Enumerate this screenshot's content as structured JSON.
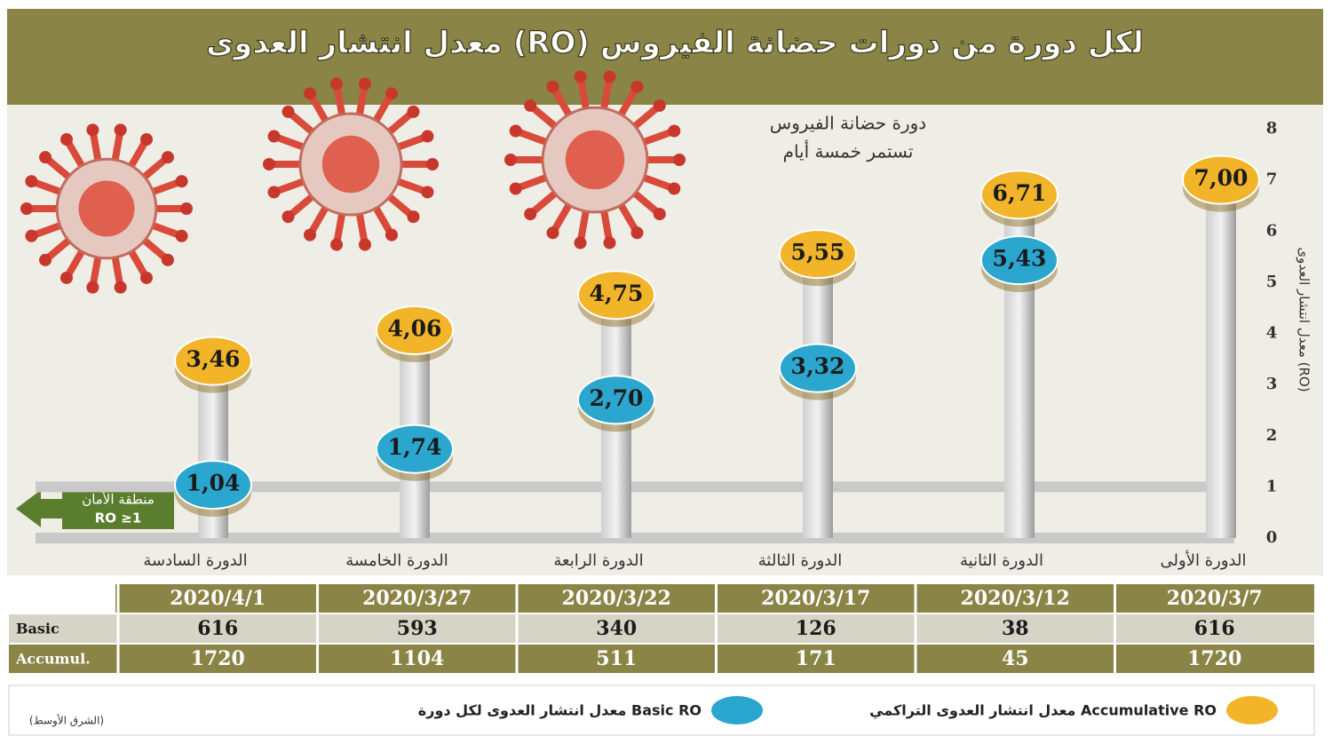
{
  "chart_data": {
    "type": "lollipop",
    "title": "معدل انتشار العدوى (RO) لكل دورة من دورات حضانة الفيروس",
    "annotation": [
      "دورة حضانة الفيروس",
      "تستمر خمسة أيام"
    ],
    "y_label": "معدل انتشار العدوى (RO)",
    "safe_zone": [
      "منطقة الأمان",
      "RO ≥1"
    ],
    "categories": [
      "الدورة الأولى",
      "الدورة الثانية",
      "الدورة الثالثة",
      "الدورة الرابعة",
      "الدورة الخامسة",
      "الدورة السادسة"
    ],
    "series": [
      {
        "name": "معدل انتشار العدوى التراكمي Accumulative RO",
        "color": "#f2b428",
        "values": [
          7.0,
          6.71,
          5.55,
          4.75,
          4.06,
          3.46
        ],
        "value_labels": [
          "7,00",
          "6,71",
          "5,55",
          "4,75",
          "4,06",
          "3,46"
        ]
      },
      {
        "name": "معدل انتشار العدوى لكل دورة Basic RO",
        "color": "#2aa6cf",
        "values": [
          null,
          5.43,
          3.32,
          2.7,
          1.74,
          1.04
        ],
        "value_labels": [
          null,
          "5,43",
          "3,32",
          "2,70",
          "1,74",
          "1,04"
        ]
      }
    ],
    "ylim": [
      0,
      8
    ],
    "yticks": [
      0,
      1,
      2,
      3,
      4,
      5,
      6,
      7,
      8
    ]
  },
  "table": {
    "header": [
      "2020/3/7",
      "2020/3/12",
      "2020/3/17",
      "2020/3/22",
      "2020/3/27",
      "2020/4/1"
    ],
    "rows": [
      {
        "label": "Basic",
        "cells": [
          "616",
          "38",
          "126",
          "340",
          "593",
          "616"
        ]
      },
      {
        "label": "Accumul.",
        "cells": [
          "1720",
          "45",
          "171",
          "511",
          "1104",
          "1720"
        ]
      }
    ]
  },
  "source": "(الشرق الأوسط)"
}
